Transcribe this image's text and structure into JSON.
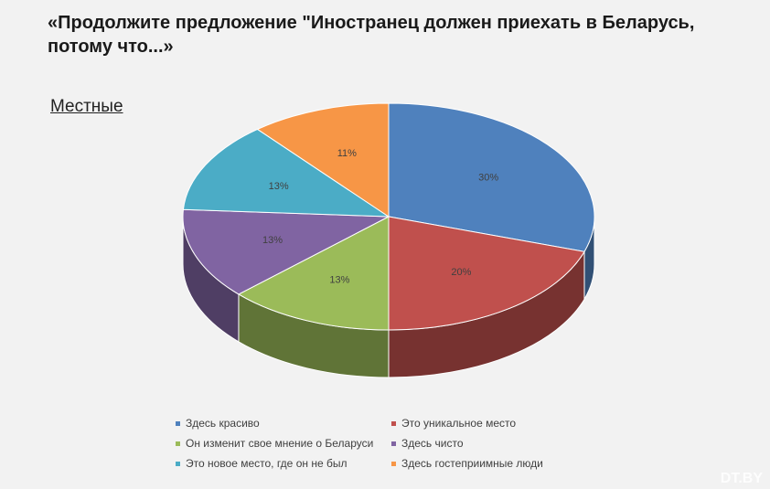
{
  "header": {
    "title": "«Продолжите предложение \"Иностранец должен приехать в Беларусь, потому что...»",
    "subtitle": "Местные"
  },
  "watermark": "DT.BY",
  "chart_data": {
    "type": "pie",
    "style": "3d",
    "legend_position": "bottom",
    "series": [
      {
        "name": "Здесь красиво",
        "value": 30,
        "label": "30%",
        "color": "#4f81bd"
      },
      {
        "name": "Это уникальное место",
        "value": 20,
        "label": "20%",
        "color": "#c0504d"
      },
      {
        "name": "Он изменит свое мнение о Беларуси",
        "value": 13,
        "label": "13%",
        "color": "#9bbb59"
      },
      {
        "name": "Здесь чисто",
        "value": 13,
        "label": "13%",
        "color": "#8064a2"
      },
      {
        "name": "Это новое место, где он не был",
        "value": 13,
        "label": "13%",
        "color": "#4bacc6"
      },
      {
        "name": "Здесь гостеприимные люди",
        "value": 11,
        "label": "11%",
        "color": "#f79646"
      }
    ]
  }
}
